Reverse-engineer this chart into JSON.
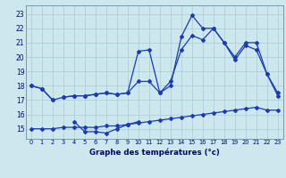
{
  "title": "Graphe des températures (°c)",
  "bg_color": "#cce8ee",
  "grid_color": "#aacccc",
  "line_color": "#1a3ab8",
  "xlim": [
    -0.5,
    23.5
  ],
  "ylim": [
    14.3,
    23.6
  ],
  "yticks": [
    15,
    16,
    17,
    18,
    19,
    20,
    21,
    22,
    23
  ],
  "x_labels": [
    "0",
    "1",
    "2",
    "3",
    "4",
    "5",
    "6",
    "7",
    "8",
    "9",
    "10",
    "11",
    "12",
    "13",
    "14",
    "15",
    "16",
    "17",
    "18",
    "19",
    "20",
    "21",
    "22",
    "23"
  ],
  "series": [
    {
      "x": [
        0,
        1,
        2
      ],
      "y": [
        18.0,
        17.8,
        17.0
      ]
    },
    {
      "x": [
        3,
        4,
        5,
        6,
        7,
        8,
        9,
        10,
        11,
        12,
        13,
        14,
        15,
        16,
        17,
        18,
        19,
        20,
        21,
        22,
        23
      ],
      "y": [
        17.2,
        17.3,
        17.3,
        17.4,
        17.5,
        17.4,
        17.5,
        20.4,
        20.5,
        17.5,
        18.0,
        21.4,
        22.9,
        22.0,
        22.0,
        21.0,
        20.0,
        21.0,
        21.0,
        18.8,
        17.5
      ]
    },
    {
      "x": [
        0,
        1,
        2,
        3,
        4,
        5,
        6,
        7,
        8,
        9,
        10,
        11,
        12,
        13,
        14,
        15,
        16,
        17,
        18,
        19,
        20,
        21,
        22,
        23
      ],
      "y": [
        18.0,
        17.8,
        17.0,
        17.2,
        17.3,
        17.3,
        17.4,
        17.5,
        17.4,
        17.5,
        18.3,
        18.3,
        17.5,
        18.3,
        20.5,
        21.5,
        21.2,
        22.0,
        21.0,
        19.8,
        20.8,
        20.5,
        18.8,
        17.3
      ]
    },
    {
      "x": [
        4,
        5,
        6,
        7,
        8,
        9
      ],
      "y": [
        15.5,
        14.8,
        14.8,
        14.7,
        15.0,
        15.3
      ]
    },
    {
      "x": [
        9,
        10
      ],
      "y": [
        15.3,
        15.5
      ]
    },
    {
      "x": [
        0,
        1,
        2,
        3,
        4,
        5,
        6,
        7,
        8,
        9,
        10,
        11,
        12,
        13,
        14,
        15,
        16,
        17,
        18,
        19,
        20,
        21,
        22,
        23
      ],
      "y": [
        15.0,
        15.0,
        15.0,
        15.1,
        15.1,
        15.1,
        15.1,
        15.2,
        15.2,
        15.3,
        15.4,
        15.5,
        15.6,
        15.7,
        15.8,
        15.9,
        16.0,
        16.1,
        16.2,
        16.3,
        16.4,
        16.5,
        16.3,
        16.3
      ]
    }
  ]
}
